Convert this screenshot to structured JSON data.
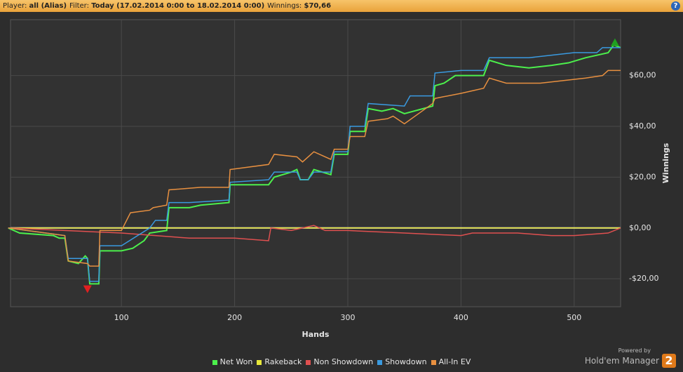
{
  "header": {
    "items": [
      {
        "label": "Player:",
        "value": "all (Alias)"
      },
      {
        "label": "Filter:",
        "value": "Today (17.02.2014 0:00 to 18.02.2014 0:00)"
      },
      {
        "label": "Winnings:",
        "value": "$70,66"
      }
    ],
    "help": "?"
  },
  "chart_data": {
    "type": "line",
    "x_label": "Hands",
    "y_label": "Winnings",
    "xlim": [
      2,
      541
    ],
    "ylim": [
      -31,
      82
    ],
    "xticks": [
      100,
      200,
      300,
      400,
      500
    ],
    "yticks": [
      {
        "value": -20,
        "label": "-$20,00"
      },
      {
        "value": 0,
        "label": "$0,00"
      },
      {
        "value": 20,
        "label": "$20,00"
      },
      {
        "value": 40,
        "label": "$40,00"
      },
      {
        "value": 60,
        "label": "$60,00"
      }
    ],
    "grid": true,
    "series": [
      {
        "name": "Net Won",
        "color": "#4cf04c",
        "x": [
          0,
          10,
          40,
          45,
          50,
          53,
          62,
          68,
          70,
          72,
          80,
          81,
          100,
          110,
          120,
          125,
          140,
          142,
          160,
          170,
          195,
          196,
          230,
          235,
          250,
          255,
          258,
          265,
          270,
          285,
          288,
          300,
          302,
          315,
          318,
          330,
          340,
          350,
          375,
          377,
          385,
          395,
          405,
          420,
          425,
          440,
          460,
          480,
          495,
          510,
          520,
          530,
          535,
          541
        ],
        "values": [
          0,
          -2,
          -3,
          -4,
          -4,
          -13,
          -14,
          -11,
          -12,
          -22,
          -22,
          -9,
          -9,
          -8,
          -5,
          -2,
          -1,
          8,
          8,
          9,
          10,
          17,
          17,
          20,
          22,
          23,
          19,
          19,
          23,
          21,
          29,
          29,
          38,
          38,
          47,
          46,
          47,
          45,
          48,
          56,
          57,
          60,
          60,
          60,
          66,
          64,
          63,
          64,
          65,
          67,
          68,
          69,
          72,
          71
        ]
      },
      {
        "name": "Rakeback",
        "color": "#e8e83a",
        "x": [
          0,
          541
        ],
        "values": [
          0,
          0
        ]
      },
      {
        "name": "Non Showdown",
        "color": "#e05050",
        "x": [
          0,
          50,
          100,
          130,
          160,
          200,
          230,
          232,
          250,
          270,
          280,
          300,
          350,
          400,
          410,
          450,
          480,
          500,
          530,
          541
        ],
        "values": [
          0,
          -1,
          -2,
          -3,
          -4,
          -4,
          -5,
          0,
          -1,
          1,
          -1,
          -1,
          -2,
          -3,
          -2,
          -2,
          -3,
          -3,
          -2,
          0
        ]
      },
      {
        "name": "Showdown",
        "color": "#3a9ae0",
        "x": [
          0,
          50,
          53,
          70,
          72,
          80,
          81,
          100,
          125,
          130,
          140,
          142,
          160,
          195,
          196,
          230,
          235,
          255,
          258,
          265,
          270,
          285,
          288,
          300,
          302,
          315,
          318,
          350,
          355,
          375,
          377,
          400,
          420,
          425,
          460,
          480,
          500,
          520,
          525,
          541
        ],
        "values": [
          0,
          -3,
          -12,
          -12,
          -21,
          -21,
          -7,
          -7,
          0,
          3,
          3,
          10,
          10,
          11,
          18,
          19,
          22,
          22,
          19,
          19,
          22,
          22,
          30,
          30,
          40,
          40,
          49,
          48,
          52,
          52,
          61,
          62,
          62,
          67,
          67,
          68,
          69,
          69,
          71,
          71
        ]
      },
      {
        "name": "All-In EV",
        "color": "#e89040",
        "x": [
          0,
          50,
          53,
          70,
          72,
          80,
          81,
          100,
          108,
          125,
          128,
          140,
          142,
          170,
          195,
          196,
          230,
          235,
          255,
          260,
          270,
          285,
          288,
          300,
          302,
          315,
          318,
          335,
          340,
          350,
          375,
          377,
          400,
          420,
          425,
          440,
          470,
          490,
          510,
          525,
          530,
          541
        ],
        "values": [
          0,
          -3,
          -13,
          -14,
          -15,
          -15,
          -1,
          -1,
          6,
          7,
          8,
          9,
          15,
          16,
          16,
          23,
          25,
          29,
          28,
          26,
          30,
          27,
          31,
          31,
          36,
          36,
          42,
          43,
          44,
          41,
          49,
          51,
          53,
          55,
          59,
          57,
          57,
          58,
          59,
          60,
          62,
          62
        ]
      }
    ],
    "markers": [
      {
        "x": 70,
        "y": -24,
        "color": "#e02020"
      },
      {
        "x": 536,
        "y": 73,
        "color": "#20a020"
      }
    ]
  },
  "branding": {
    "powered_by": "Powered by",
    "name": "Hold'em Manager",
    "logo": "2"
  }
}
